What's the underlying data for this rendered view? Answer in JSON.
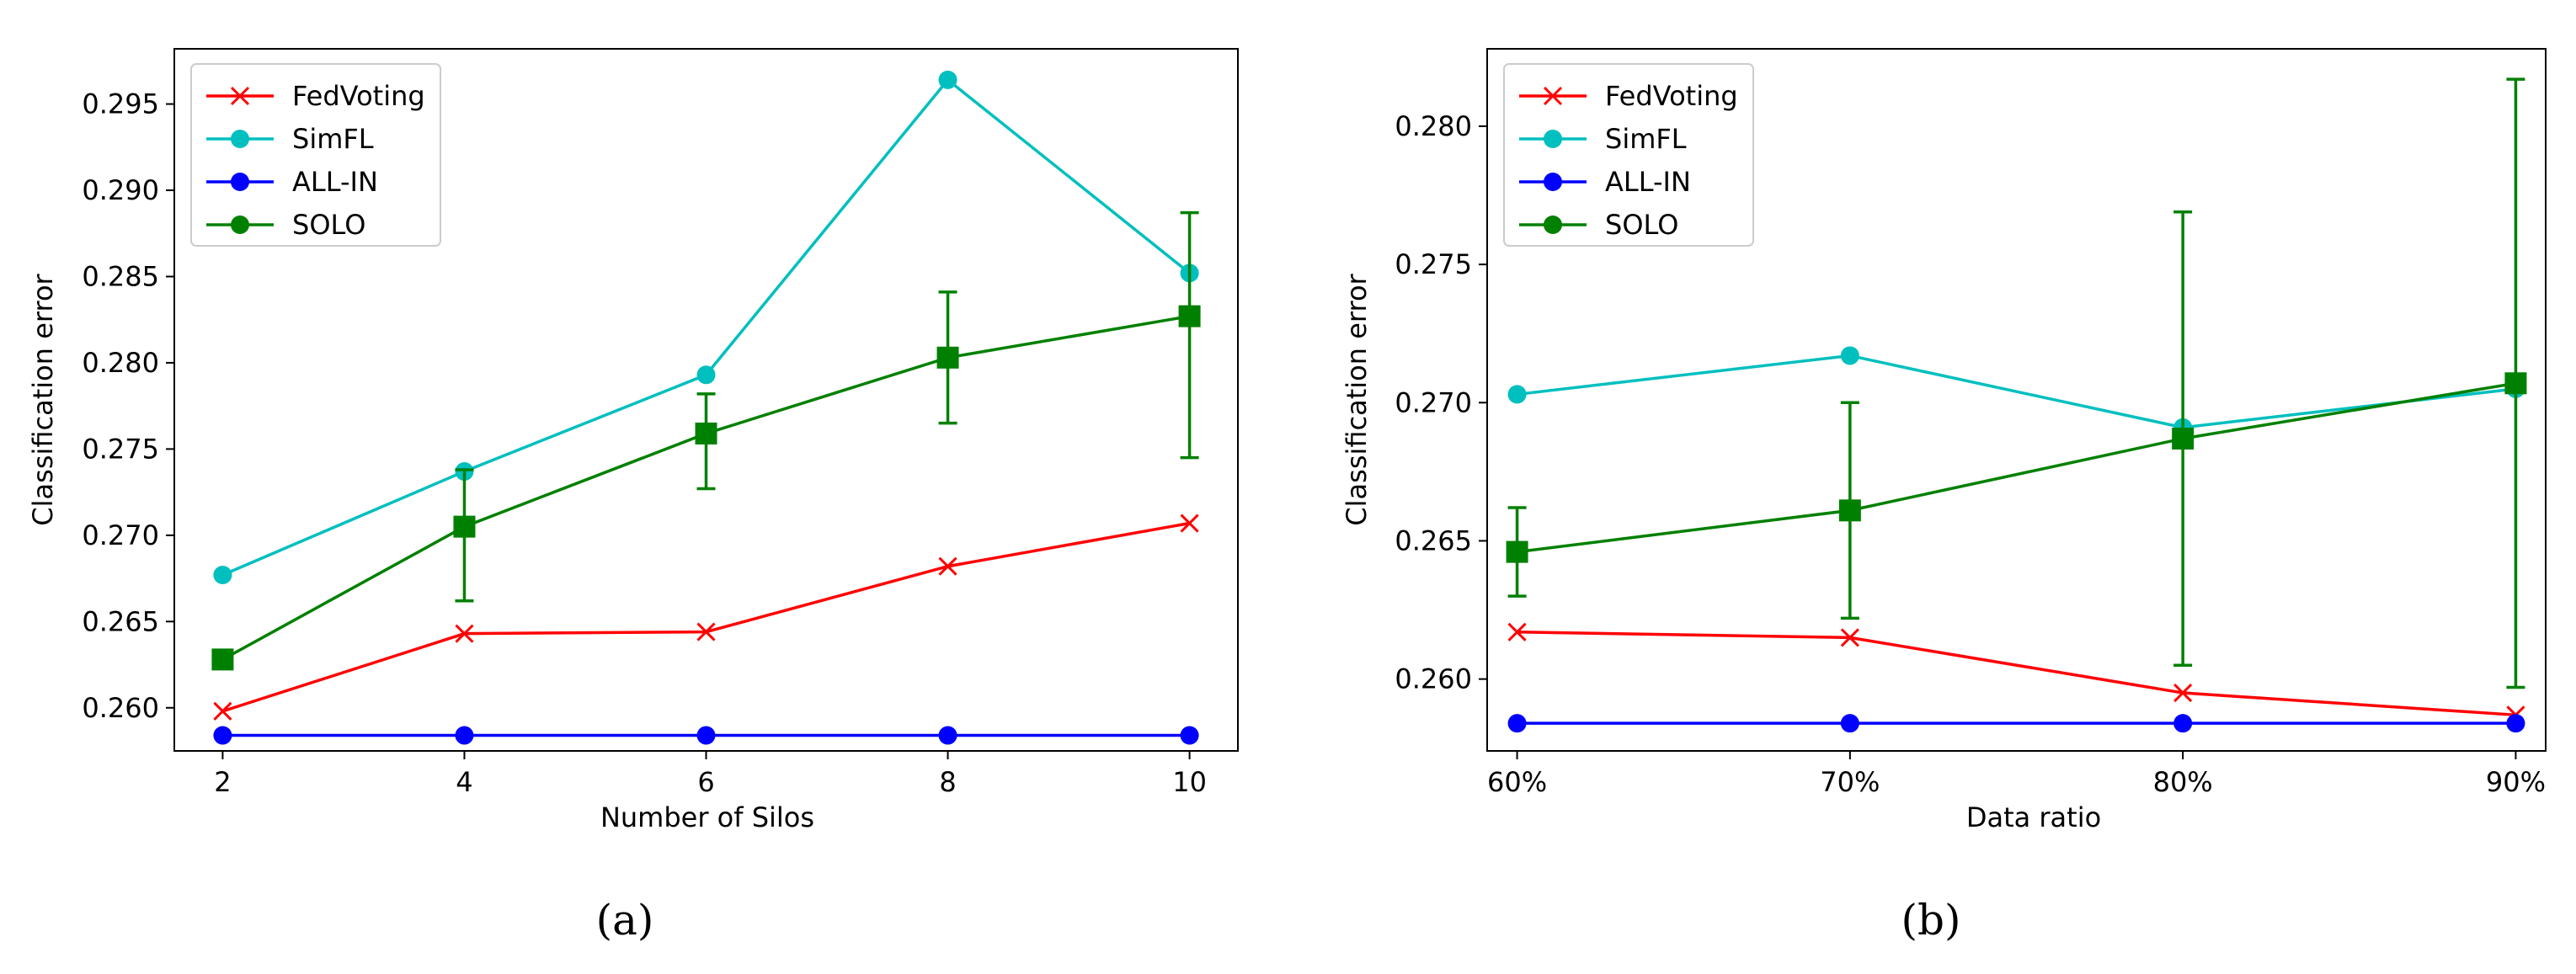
{
  "chart_data": [
    {
      "type": "line",
      "caption": "(a)",
      "xlabel": "Number of Silos",
      "ylabel": "Classification error",
      "x": [
        2,
        4,
        6,
        8,
        10
      ],
      "x_tick_labels": [
        "2",
        "4",
        "6",
        "8",
        "10"
      ],
      "ylim": [
        0.2575,
        0.2982
      ],
      "y_ticks": [
        0.26,
        0.265,
        0.27,
        0.275,
        0.28,
        0.285,
        0.29,
        0.295
      ],
      "y_tick_labels": [
        "0.260",
        "0.265",
        "0.270",
        "0.275",
        "0.280",
        "0.285",
        "0.290",
        "0.295"
      ],
      "legend_position": "top-left",
      "series": [
        {
          "name": "FedVoting",
          "color": "#ff0000",
          "marker": "x",
          "values": [
            0.2598,
            0.2643,
            0.2644,
            0.2682,
            0.2707
          ]
        },
        {
          "name": "SimFL",
          "color": "#00bfbf",
          "marker": "circle",
          "values": [
            0.2677,
            0.2737,
            0.2793,
            0.2964,
            0.2852
          ]
        },
        {
          "name": "ALL-IN",
          "color": "#0000ff",
          "marker": "circle",
          "values": [
            0.2584,
            0.2584,
            0.2584,
            0.2584,
            0.2584
          ]
        },
        {
          "name": "SOLO",
          "color": "#008000",
          "marker": "circle",
          "values": [
            0.2628,
            0.2705,
            0.2759,
            0.2803,
            0.2827
          ],
          "error_low": [
            0.2628,
            0.2662,
            0.2727,
            0.2765,
            0.2745
          ],
          "error_high": [
            0.2628,
            0.2738,
            0.2782,
            0.2841,
            0.2887
          ]
        }
      ]
    },
    {
      "type": "line",
      "caption": "(b)",
      "xlabel": "Data ratio",
      "ylabel": "Classification error",
      "x": [
        0,
        1,
        2,
        3
      ],
      "x_tick_labels": [
        "60%",
        "70%",
        "80%",
        "90%"
      ],
      "ylim": [
        0.2574,
        0.2828
      ],
      "y_ticks": [
        0.26,
        0.265,
        0.27,
        0.275,
        0.28
      ],
      "y_tick_labels": [
        "0.260",
        "0.265",
        "0.270",
        "0.275",
        "0.280"
      ],
      "legend_position": "top-left",
      "series": [
        {
          "name": "FedVoting",
          "color": "#ff0000",
          "marker": "x",
          "values": [
            0.2617,
            0.2615,
            0.2595,
            0.2587
          ]
        },
        {
          "name": "SimFL",
          "color": "#00bfbf",
          "marker": "circle",
          "values": [
            0.2703,
            0.2717,
            0.2691,
            0.2705
          ]
        },
        {
          "name": "ALL-IN",
          "color": "#0000ff",
          "marker": "circle",
          "values": [
            0.2584,
            0.2584,
            0.2584,
            0.2584
          ]
        },
        {
          "name": "SOLO",
          "color": "#008000",
          "marker": "circle",
          "values": [
            0.2646,
            0.2661,
            0.2687,
            0.2707
          ],
          "error_low": [
            0.263,
            0.2622,
            0.2605,
            0.2597
          ],
          "error_high": [
            0.2662,
            0.27,
            0.2769,
            0.2817
          ]
        }
      ]
    }
  ]
}
